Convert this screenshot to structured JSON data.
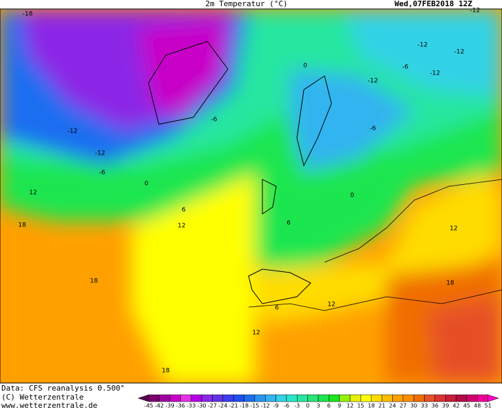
{
  "header": {
    "title": "2m Temperatur (°C)",
    "date": "Wed,07FEB2018 12Z"
  },
  "footer": {
    "source": "Data: CFS reanalysis 0.500°",
    "copyright": "(C) Wetterzentrale",
    "url": "www.wetterzentrale.de"
  },
  "colorbar": {
    "ticks": [
      -45,
      -42,
      -39,
      -36,
      -33,
      -30,
      -27,
      -24,
      -21,
      -18,
      -15,
      -12,
      -9,
      -6,
      -3,
      0,
      3,
      6,
      9,
      12,
      15,
      18,
      21,
      24,
      27,
      30,
      33,
      36,
      39,
      42,
      45,
      48,
      51
    ],
    "colors": [
      "#5a0050",
      "#7a0070",
      "#a000a0",
      "#c800c8",
      "#e632e6",
      "#b400e6",
      "#8c28e6",
      "#6432e6",
      "#3c3cf0",
      "#1e50f0",
      "#1e6ef0",
      "#2896f0",
      "#32b4f0",
      "#32d2e6",
      "#28e6c8",
      "#28e6a0",
      "#28e678",
      "#1ee650",
      "#1ee61e",
      "#96f00a",
      "#e6f000",
      "#ffff00",
      "#ffdc00",
      "#ffbe00",
      "#ffa000",
      "#ff8c00",
      "#f06e00",
      "#e65028",
      "#dc3232",
      "#c81e3c",
      "#b40a46",
      "#d2006e",
      "#f0009a",
      "#ff00c8"
    ]
  },
  "contour_labels": [
    "-18",
    "-12",
    "-12",
    "-6",
    "0",
    "6",
    "12",
    "12",
    "18",
    "18",
    "18",
    "12",
    "6",
    "12",
    "18",
    "12",
    "0",
    "-6",
    "-6",
    "-12",
    "-12",
    "-12",
    "-12",
    "-6",
    "-12",
    "0",
    "6"
  ]
}
